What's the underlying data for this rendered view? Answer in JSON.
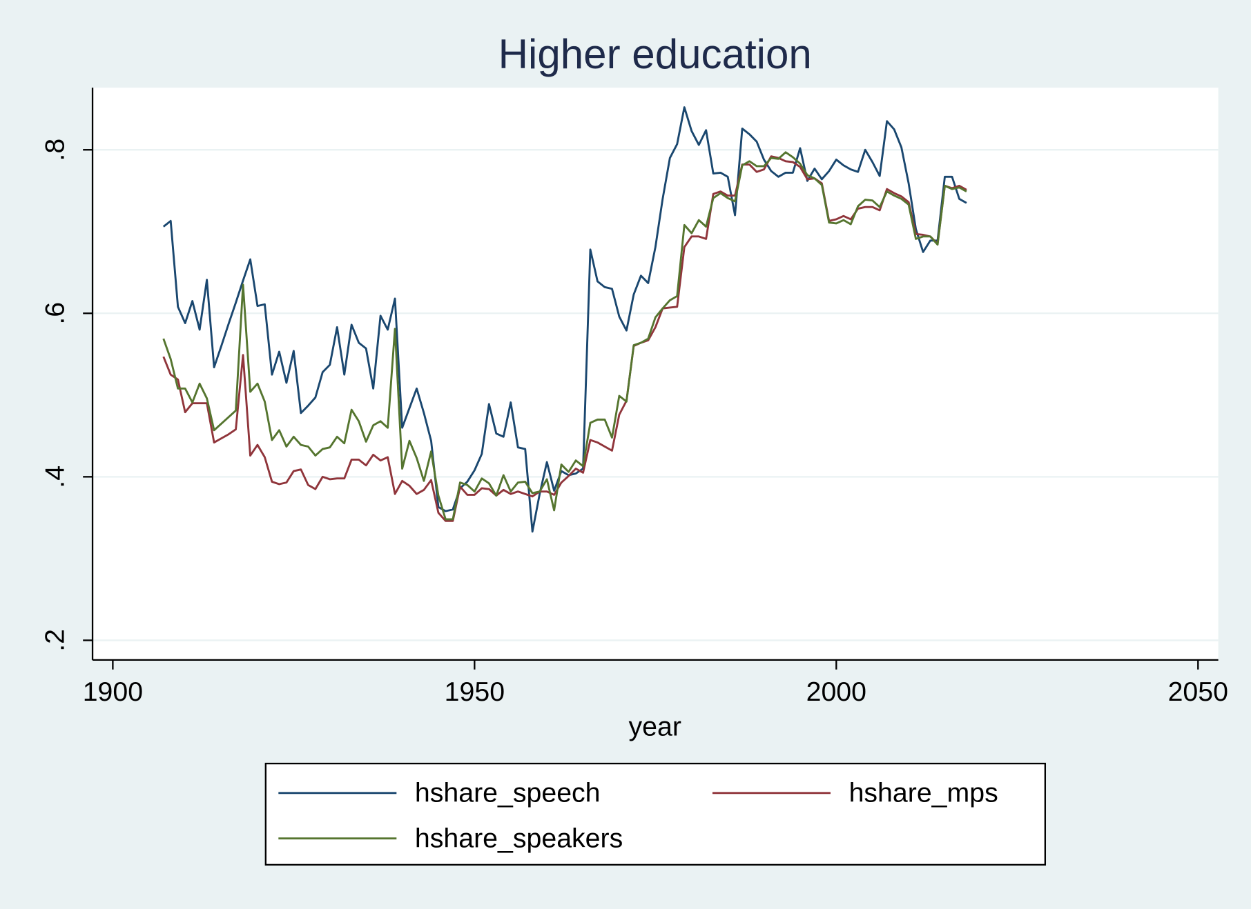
{
  "chart_data": {
    "type": "line",
    "title": "Higher education",
    "xlabel": "year",
    "x": [
      1907,
      1908,
      1909,
      1910,
      1911,
      1912,
      1913,
      1914,
      1915,
      1916,
      1917,
      1918,
      1919,
      1920,
      1921,
      1922,
      1923,
      1924,
      1925,
      1926,
      1927,
      1928,
      1929,
      1930,
      1931,
      1932,
      1933,
      1934,
      1935,
      1936,
      1937,
      1938,
      1939,
      1940,
      1941,
      1942,
      1943,
      1944,
      1945,
      1946,
      1947,
      1948,
      1949,
      1950,
      1951,
      1952,
      1953,
      1954,
      1955,
      1956,
      1957,
      1958,
      1959,
      1960,
      1961,
      1962,
      1963,
      1964,
      1965,
      1966,
      1967,
      1968,
      1969,
      1970,
      1971,
      1972,
      1973,
      1974,
      1975,
      1976,
      1977,
      1978,
      1979,
      1980,
      1981,
      1982,
      1983,
      1984,
      1985,
      1986,
      1987,
      1988,
      1989,
      1990,
      1991,
      1992,
      1993,
      1994,
      1995,
      1996,
      1997,
      1998,
      1999,
      2000,
      2001,
      2002,
      2003,
      2004,
      2005,
      2006,
      2007,
      2008,
      2009,
      2010,
      2011,
      2012,
      2013,
      2014,
      2015,
      2016,
      2017,
      2018
    ],
    "series": [
      {
        "name": "hshare_speech",
        "color": "#1a476f",
        "values": [
          0.706,
          0.713,
          0.608,
          0.588,
          0.615,
          0.58,
          0.641,
          0.534,
          0.56,
          0.587,
          0.613,
          0.64,
          0.666,
          0.609,
          0.611,
          0.525,
          0.553,
          0.515,
          0.554,
          0.478,
          0.487,
          0.497,
          0.528,
          0.537,
          0.583,
          0.525,
          0.586,
          0.564,
          0.557,
          0.508,
          0.597,
          0.58,
          0.618,
          0.46,
          0.484,
          0.508,
          0.478,
          0.444,
          0.363,
          0.358,
          0.36,
          0.386,
          0.394,
          0.408,
          0.428,
          0.489,
          0.453,
          0.449,
          0.491,
          0.436,
          0.434,
          0.333,
          0.379,
          0.418,
          0.383,
          0.407,
          0.402,
          0.404,
          0.41,
          0.678,
          0.639,
          0.632,
          0.63,
          0.596,
          0.579,
          0.623,
          0.646,
          0.637,
          0.681,
          0.74,
          0.79,
          0.807,
          0.852,
          0.823,
          0.806,
          0.824,
          0.771,
          0.772,
          0.767,
          0.72,
          0.826,
          0.819,
          0.81,
          0.788,
          0.774,
          0.767,
          0.772,
          0.772,
          0.802,
          0.762,
          0.777,
          0.764,
          0.774,
          0.788,
          0.781,
          0.776,
          0.773,
          0.8,
          0.785,
          0.768,
          0.835,
          0.825,
          0.803,
          0.759,
          0.703,
          0.675,
          0.689,
          0.689,
          0.767,
          0.767,
          0.74,
          0.735
        ]
      },
      {
        "name": "hshare_mps",
        "color": "#90353b",
        "values": [
          0.547,
          0.525,
          0.519,
          0.479,
          0.49,
          0.49,
          0.49,
          0.442,
          0.447,
          0.452,
          0.458,
          0.549,
          0.426,
          0.439,
          0.424,
          0.394,
          0.391,
          0.393,
          0.407,
          0.409,
          0.39,
          0.385,
          0.4,
          0.397,
          0.398,
          0.398,
          0.421,
          0.421,
          0.414,
          0.427,
          0.42,
          0.424,
          0.379,
          0.395,
          0.389,
          0.379,
          0.384,
          0.396,
          0.356,
          0.346,
          0.346,
          0.388,
          0.378,
          0.378,
          0.386,
          0.385,
          0.377,
          0.384,
          0.379,
          0.382,
          0.379,
          0.376,
          0.382,
          0.382,
          0.378,
          0.393,
          0.401,
          0.41,
          0.405,
          0.445,
          0.442,
          0.437,
          0.432,
          0.476,
          0.493,
          0.56,
          0.564,
          0.567,
          0.583,
          0.606,
          0.607,
          0.608,
          0.681,
          0.694,
          0.694,
          0.691,
          0.746,
          0.749,
          0.744,
          0.744,
          0.782,
          0.782,
          0.773,
          0.776,
          0.792,
          0.79,
          0.786,
          0.785,
          0.779,
          0.764,
          0.765,
          0.759,
          0.713,
          0.715,
          0.719,
          0.715,
          0.728,
          0.73,
          0.73,
          0.726,
          0.752,
          0.747,
          0.743,
          0.736,
          0.697,
          0.696,
          0.694,
          0.685,
          0.756,
          0.753,
          0.756,
          0.751
        ]
      },
      {
        "name": "hshare_speakers",
        "color": "#55752f",
        "values": [
          0.569,
          0.544,
          0.508,
          0.508,
          0.491,
          0.514,
          0.496,
          0.457,
          0.465,
          0.473,
          0.481,
          0.635,
          0.504,
          0.514,
          0.492,
          0.445,
          0.457,
          0.437,
          0.449,
          0.439,
          0.437,
          0.426,
          0.434,
          0.436,
          0.449,
          0.441,
          0.482,
          0.468,
          0.443,
          0.463,
          0.468,
          0.46,
          0.581,
          0.41,
          0.444,
          0.423,
          0.395,
          0.431,
          0.377,
          0.348,
          0.348,
          0.393,
          0.39,
          0.382,
          0.398,
          0.392,
          0.377,
          0.402,
          0.382,
          0.393,
          0.394,
          0.38,
          0.382,
          0.397,
          0.359,
          0.415,
          0.406,
          0.42,
          0.413,
          0.466,
          0.47,
          0.47,
          0.448,
          0.499,
          0.492,
          0.561,
          0.564,
          0.569,
          0.595,
          0.606,
          0.616,
          0.621,
          0.708,
          0.698,
          0.714,
          0.706,
          0.741,
          0.747,
          0.741,
          0.737,
          0.781,
          0.786,
          0.78,
          0.78,
          0.79,
          0.789,
          0.797,
          0.791,
          0.783,
          0.769,
          0.765,
          0.757,
          0.711,
          0.71,
          0.714,
          0.709,
          0.731,
          0.739,
          0.738,
          0.73,
          0.749,
          0.744,
          0.74,
          0.733,
          0.691,
          0.694,
          0.694,
          0.684,
          0.756,
          0.752,
          0.754,
          0.749
        ]
      }
    ],
    "xlim": [
      1897.2,
      2052.8
    ],
    "xticks": [
      1900,
      1950,
      2000,
      2050
    ],
    "ylim": [
      0.176,
      0.876
    ],
    "yticks": [
      {
        "value": 0.2,
        "label": ".2"
      },
      {
        "value": 0.4,
        "label": ".4"
      },
      {
        "value": 0.6,
        "label": ".6"
      },
      {
        "value": 0.8,
        "label": ".8"
      }
    ],
    "grid": true,
    "legend": "bottom"
  }
}
